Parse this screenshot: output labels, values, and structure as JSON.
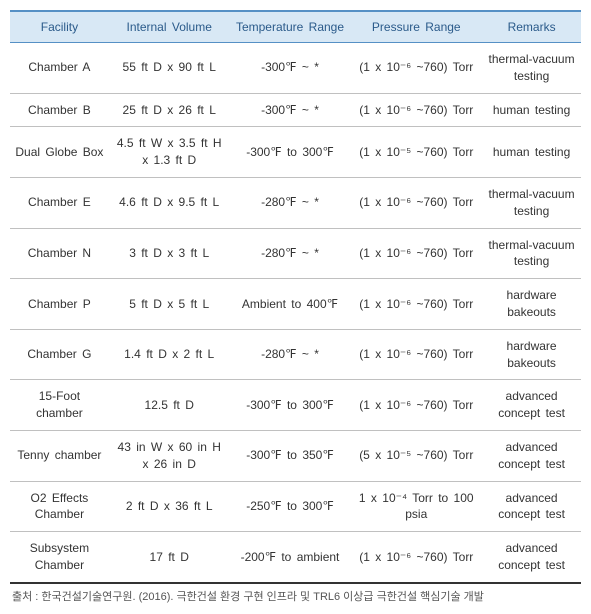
{
  "table": {
    "columns": [
      "Facility",
      "Internal Volume",
      "Temperature Range",
      "Pressure Range",
      "Remarks"
    ],
    "rows": [
      {
        "facility": "Chamber A",
        "volume": "55 ft D x 90 ft L",
        "temp": "-300℉ ~ *",
        "pressure": "(1 x 10⁻⁶ ~760) Torr",
        "remarks": "thermal-vacuum testing"
      },
      {
        "facility": "Chamber B",
        "volume": "25 ft D x 26 ft L",
        "temp": "-300℉ ~ *",
        "pressure": "(1 x 10⁻⁶ ~760) Torr",
        "remarks": "human testing"
      },
      {
        "facility": "Dual Globe Box",
        "volume": "4.5 ft W x 3.5 ft H x 1.3 ft D",
        "temp": "-300℉ to 300℉",
        "pressure": "(1 x 10⁻⁵ ~760) Torr",
        "remarks": "human testing"
      },
      {
        "facility": "Chamber E",
        "volume": "4.6 ft D x 9.5 ft L",
        "temp": "-280℉ ~ *",
        "pressure": "(1 x 10⁻⁶ ~760) Torr",
        "remarks": "thermal-vacuum testing"
      },
      {
        "facility": "Chamber N",
        "volume": "3 ft D x 3 ft L",
        "temp": "-280℉ ~ *",
        "pressure": "(1 x 10⁻⁶ ~760) Torr",
        "remarks": "thermal-vacuum testing"
      },
      {
        "facility": "Chamber P",
        "volume": "5 ft D x 5 ft L",
        "temp": "Ambient to 400℉",
        "pressure": "(1 x 10⁻⁶ ~760) Torr",
        "remarks": "hardware bakeouts"
      },
      {
        "facility": "Chamber G",
        "volume": "1.4 ft D x 2 ft L",
        "temp": "-280℉ ~ *",
        "pressure": "(1 x 10⁻⁶ ~760) Torr",
        "remarks": "hardware bakeouts"
      },
      {
        "facility": "15-Foot chamber",
        "volume": "12.5 ft D",
        "temp": "-300℉ to 300℉",
        "pressure": "(1 x 10⁻⁶ ~760) Torr",
        "remarks": "advanced concept test"
      },
      {
        "facility": "Tenny chamber",
        "volume": "43 in W x 60 in H x 26 in D",
        "temp": "-300℉ to 350℉",
        "pressure": "(5 x 10⁻⁵ ~760) Torr",
        "remarks": "advanced concept test"
      },
      {
        "facility": "O2 Effects Chamber",
        "volume": "2 ft D x 36 ft L",
        "temp": "-250℉ to 300℉",
        "pressure": "1 x 10⁻⁴ Torr to 100 psia",
        "remarks": "advanced concept test"
      },
      {
        "facility": "Subsystem Chamber",
        "volume": "17 ft D",
        "temp": "-200℉ to ambient",
        "pressure": "(1 x 10⁻⁶ ~760) Torr",
        "remarks": "advanced concept test"
      }
    ]
  },
  "source": "출처 : 한국건설기술연구원. (2016). 극한건설 환경 구현 인프라 및 TRL6 이상급 극한건설 핵심기술 개발"
}
